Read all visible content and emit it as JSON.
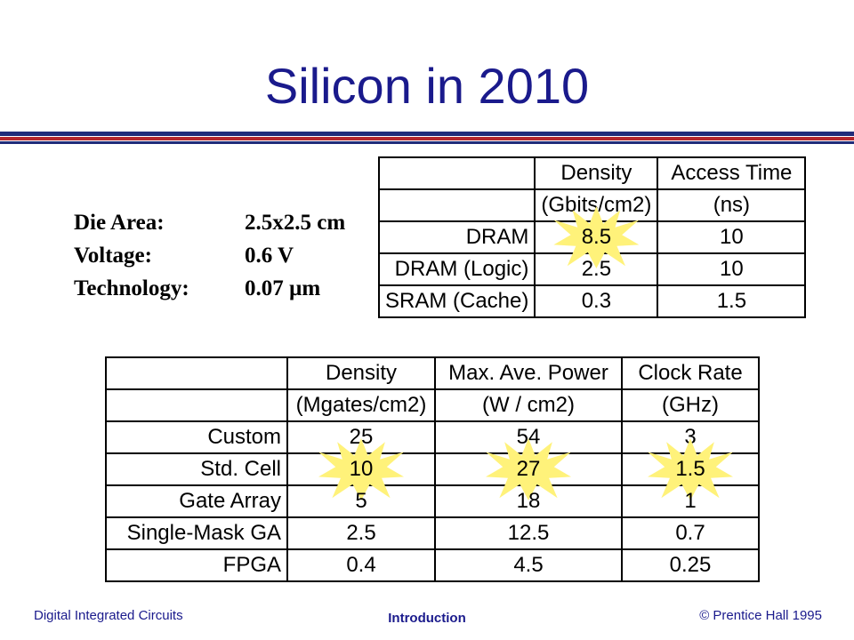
{
  "title": "Silicon in 2010",
  "specs": [
    {
      "label": "Die Area:",
      "value": "2.5x2.5 cm"
    },
    {
      "label": "Voltage:",
      "value": "0.6 V"
    },
    {
      "label": "Technology:",
      "value": "0.07 µm"
    }
  ],
  "memory_table": {
    "header1": [
      "",
      "Density",
      "Access Time"
    ],
    "header2": [
      "",
      "(Gbits/cm2)",
      "(ns)"
    ],
    "rows": [
      {
        "label": "DRAM",
        "density": "8.5",
        "access_time": "10"
      },
      {
        "label": "DRAM (Logic)",
        "density": "2.5",
        "access_time": "10"
      },
      {
        "label": "SRAM (Cache)",
        "density": "0.3",
        "access_time": "1.5"
      }
    ]
  },
  "gate_table": {
    "header1": [
      "",
      "Density",
      "Max. Ave. Power",
      "Clock Rate"
    ],
    "header2": [
      "",
      "(Mgates/cm2)",
      "(W / cm2)",
      "(GHz)"
    ],
    "rows": [
      {
        "label": "Custom",
        "density": "25",
        "power": "54",
        "clock": "3"
      },
      {
        "label": "Std. Cell",
        "density": "10",
        "power": "27",
        "clock": "1.5"
      },
      {
        "label": "Gate Array",
        "density": "5",
        "power": "18",
        "clock": "1"
      },
      {
        "label": "Single-Mask GA",
        "density": "2.5",
        "power": "12.5",
        "clock": "0.7"
      },
      {
        "label": "FPGA",
        "density": "0.4",
        "power": "4.5",
        "clock": "0.25"
      }
    ]
  },
  "footer": {
    "left": "Digital Integrated Circuits",
    "center": "Introduction",
    "right": "© Prentice Hall 1995"
  },
  "colors": {
    "title": "#1a1a8c",
    "rule_blue": "#1f2c7a",
    "rule_red": "#b3262c",
    "highlight": "#fff27a"
  }
}
